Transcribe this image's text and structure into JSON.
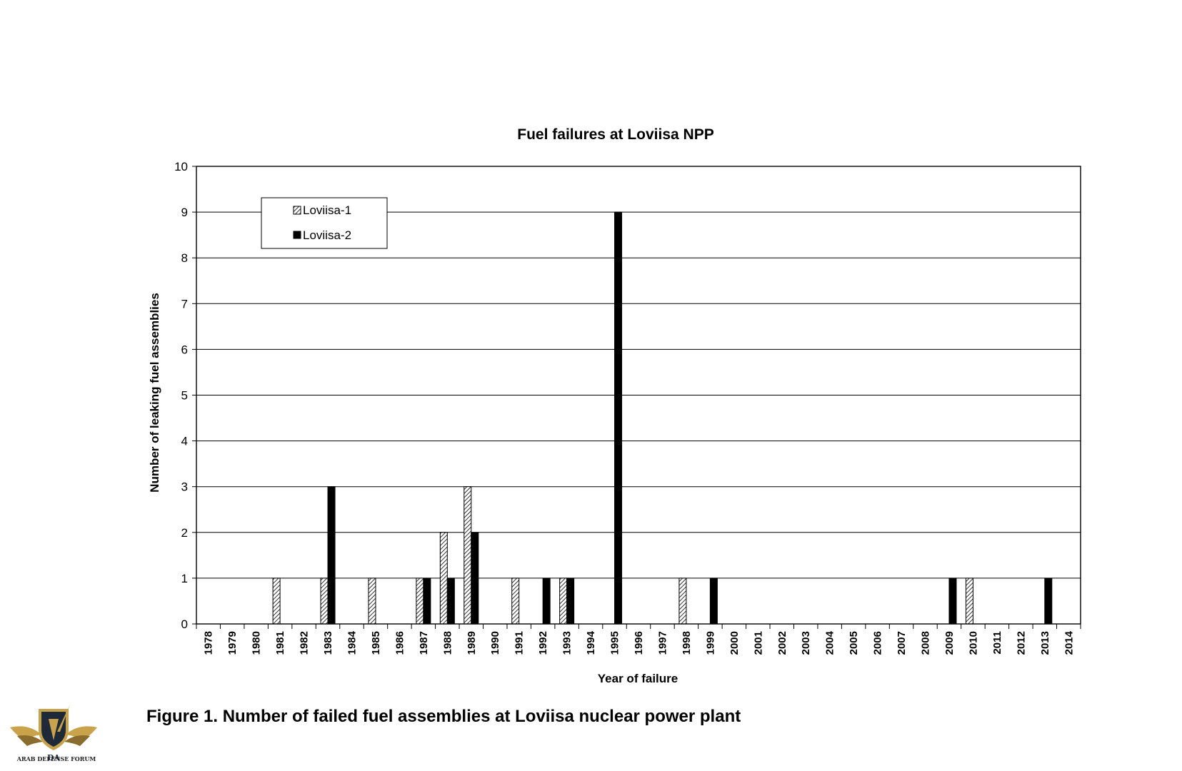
{
  "chart_data": {
    "type": "bar",
    "title": "Fuel failures at Loviisa NPP",
    "xlabel": "Year of failure",
    "ylabel": "Number of leaking fuel assemblies",
    "ylim": [
      0,
      10
    ],
    "yticks": [
      "0",
      "1",
      "2",
      "3",
      "4",
      "5",
      "6",
      "7",
      "8",
      "9",
      "10"
    ],
    "grid": true,
    "legend_position": "top-left",
    "categories": [
      "1978",
      "1979",
      "1980",
      "1981",
      "1982",
      "1983",
      "1984",
      "1985",
      "1986",
      "1987",
      "1988",
      "1989",
      "1990",
      "1991",
      "1992",
      "1993",
      "1994",
      "1995",
      "1996",
      "1997",
      "1998",
      "1999",
      "2000",
      "2001",
      "2002",
      "2003",
      "2004",
      "2005",
      "2006",
      "2007",
      "2008",
      "2009",
      "2010",
      "2011",
      "2012",
      "2013",
      "2014"
    ],
    "series": [
      {
        "name": "Loviisa-1",
        "pattern": "hatched",
        "values": [
          0,
          0,
          0,
          1,
          0,
          1,
          0,
          1,
          0,
          1,
          2,
          3,
          0,
          1,
          0,
          1,
          0,
          0,
          0,
          0,
          1,
          0,
          0,
          0,
          0,
          0,
          0,
          0,
          0,
          0,
          0,
          0,
          1,
          0,
          0,
          0,
          0
        ]
      },
      {
        "name": "Loviisa-2",
        "color": "#000000",
        "values": [
          0,
          0,
          0,
          0,
          0,
          3,
          0,
          0,
          0,
          1,
          1,
          2,
          0,
          0,
          1,
          1,
          0,
          9,
          0,
          0,
          0,
          1,
          0,
          0,
          0,
          0,
          0,
          0,
          0,
          0,
          0,
          1,
          0,
          0,
          0,
          1,
          0
        ]
      }
    ]
  },
  "caption": "Figure 1.  Number of failed fuel assemblies at Loviisa nuclear power plant",
  "logo": {
    "icon": "shield-wings-icon",
    "text": "ARAB DEFENSE FORUM"
  }
}
